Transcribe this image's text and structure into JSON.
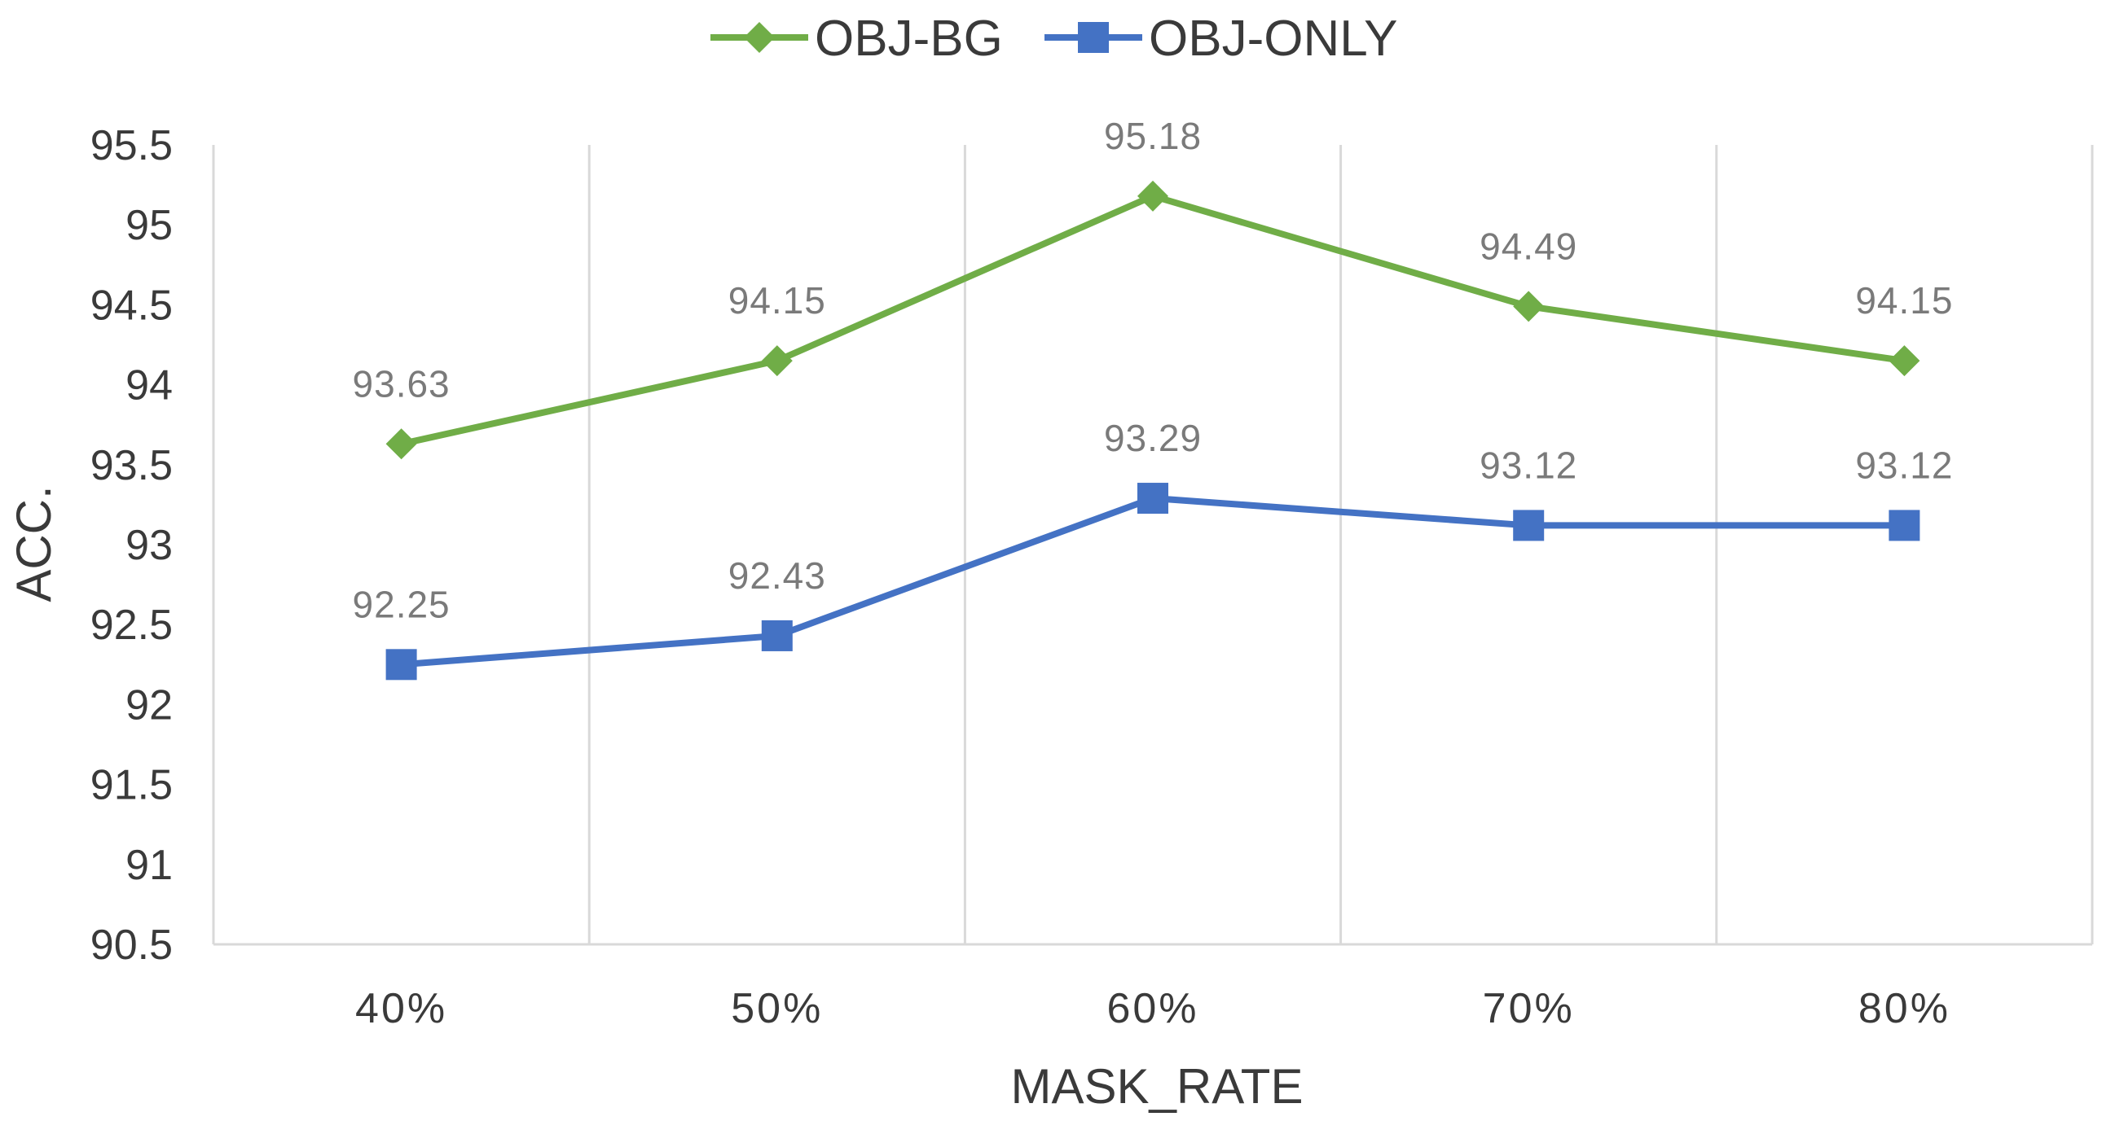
{
  "chart_data": {
    "type": "line",
    "title": "",
    "xlabel": "MASK_RATE",
    "ylabel": "ACC.",
    "categories": [
      "40%",
      "50%",
      "60%",
      "70%",
      "80%"
    ],
    "ylim": [
      90.5,
      95.5
    ],
    "yticks": [
      90.5,
      91,
      91.5,
      92,
      92.5,
      93,
      93.5,
      94,
      94.5,
      95,
      95.5
    ],
    "grid": "vertical",
    "legend_position": "top-center",
    "series": [
      {
        "name": "OBJ-BG",
        "values": [
          93.63,
          94.15,
          95.18,
          94.49,
          94.15
        ],
        "labels": [
          "93.63",
          "94.15",
          "95.18",
          "94.49",
          "94.15"
        ],
        "color": "#70AD47",
        "marker": "diamond"
      },
      {
        "name": "OBJ-ONLY",
        "values": [
          92.25,
          92.43,
          93.29,
          93.12,
          93.12
        ],
        "labels": [
          "92.25",
          "92.43",
          "93.29",
          "93.12",
          "93.12"
        ],
        "color": "#4472C4",
        "marker": "square"
      }
    ]
  }
}
